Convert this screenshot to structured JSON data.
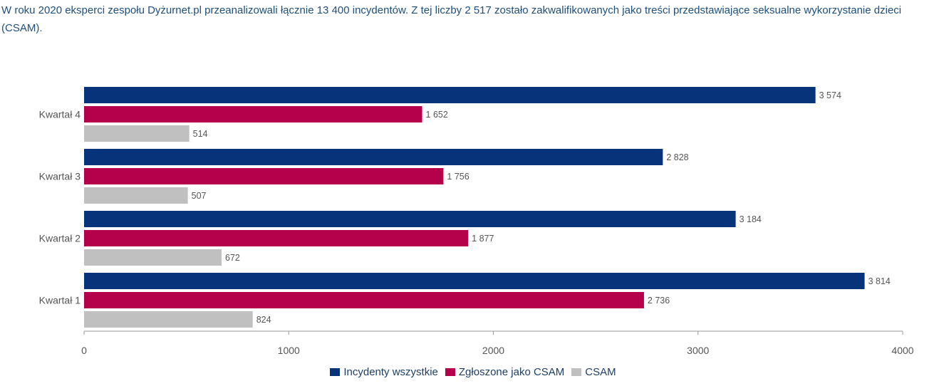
{
  "intro_text": "W roku 2020 eksperci zespołu Dyżurnet.pl przeanalizowali łącznie 13 400 incydentów. Z tej liczby 2 517 zostało zakwalifikowanych jako treści przedstawiające seksualne wykorzystanie dzieci (CSAM).",
  "chart_data": {
    "type": "bar",
    "orientation": "horizontal",
    "categories": [
      "Kwartał 4",
      "Kwartał 3",
      "Kwartał 2",
      "Kwartał 1"
    ],
    "series": [
      {
        "name": "Incydenty wszystkie",
        "color": "#06337a",
        "values": [
          3574,
          2828,
          3184,
          3814
        ],
        "labels": [
          "3 574",
          "2 828",
          "3 184",
          "3 814"
        ]
      },
      {
        "name": "Zgłoszone jako CSAM",
        "color": "#b5004b",
        "values": [
          1652,
          1756,
          1877,
          2736
        ],
        "labels": [
          "1 652",
          "1 756",
          "1 877",
          "2 736"
        ]
      },
      {
        "name": "CSAM",
        "color": "#c0c0c0",
        "values": [
          514,
          507,
          672,
          824
        ],
        "labels": [
          "514",
          "507",
          "672",
          "824"
        ]
      }
    ],
    "xlim": [
      0,
      4000
    ],
    "xticks": [
      "0",
      "1000",
      "2000",
      "3000",
      "4000"
    ],
    "grid": false,
    "legend": "bottom"
  }
}
